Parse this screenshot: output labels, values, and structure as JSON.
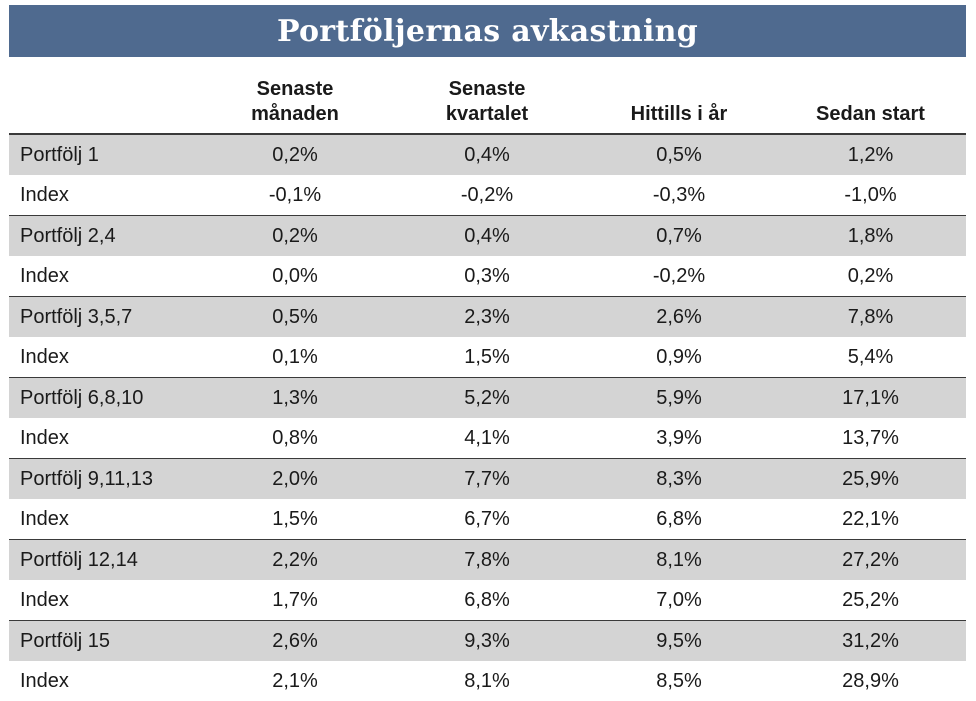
{
  "title": "Portföljernas avkastning",
  "columns": [
    {
      "line1": "Senaste",
      "line2": "månaden"
    },
    {
      "line1": "Senaste",
      "line2": "kvartalet"
    },
    {
      "line1": "",
      "line2": "Hittills i år"
    },
    {
      "line1": "",
      "line2": "Sedan start"
    }
  ],
  "rows": [
    {
      "label": "Portfölj 1",
      "values": [
        "0,2%",
        "0,4%",
        "0,5%",
        "1,2%"
      ]
    },
    {
      "label": "Index",
      "values": [
        "-0,1%",
        "-0,2%",
        "-0,3%",
        "-1,0%"
      ]
    },
    {
      "label": "Portfölj 2,4",
      "values": [
        "0,2%",
        "0,4%",
        "0,7%",
        "1,8%"
      ]
    },
    {
      "label": "Index",
      "values": [
        "0,0%",
        "0,3%",
        "-0,2%",
        "0,2%"
      ]
    },
    {
      "label": "Portfölj 3,5,7",
      "values": [
        "0,5%",
        "2,3%",
        "2,6%",
        "7,8%"
      ]
    },
    {
      "label": "Index",
      "values": [
        "0,1%",
        "1,5%",
        "0,9%",
        "5,4%"
      ]
    },
    {
      "label": "Portfölj 6,8,10",
      "values": [
        "1,3%",
        "5,2%",
        "5,9%",
        "17,1%"
      ]
    },
    {
      "label": "Index",
      "values": [
        "0,8%",
        "4,1%",
        "3,9%",
        "13,7%"
      ]
    },
    {
      "label": "Portfölj 9,11,13",
      "values": [
        "2,0%",
        "7,7%",
        "8,3%",
        "25,9%"
      ]
    },
    {
      "label": "Index",
      "values": [
        "1,5%",
        "6,7%",
        "6,8%",
        "22,1%"
      ]
    },
    {
      "label": "Portfölj 12,14",
      "values": [
        "2,2%",
        "7,8%",
        "8,1%",
        "27,2%"
      ]
    },
    {
      "label": "Index",
      "values": [
        "1,7%",
        "6,8%",
        "7,0%",
        "25,2%"
      ]
    },
    {
      "label": "Portfölj 15",
      "values": [
        "2,6%",
        "9,3%",
        "9,5%",
        "31,2%"
      ]
    },
    {
      "label": "Index",
      "values": [
        "2,1%",
        "8,1%",
        "8,5%",
        "28,9%"
      ]
    }
  ],
  "colors": {
    "title_bg": "#4f6a8f",
    "portfolio_row_bg": "#d4d4d4",
    "index_row_bg": "#ffffff"
  }
}
